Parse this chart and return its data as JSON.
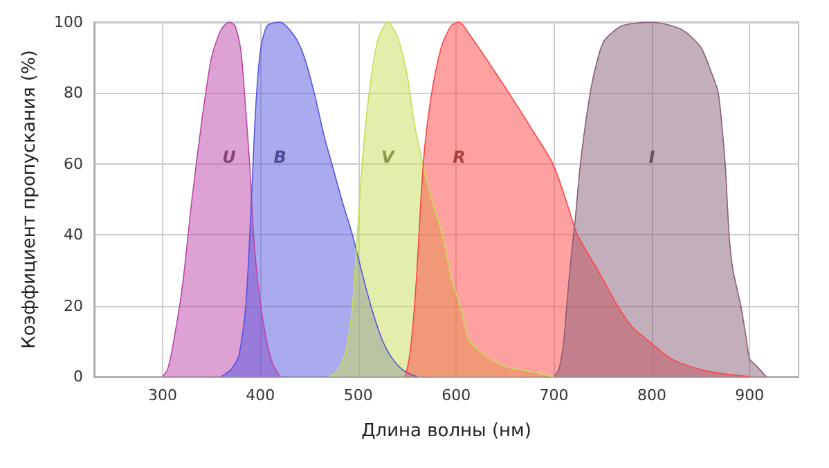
{
  "chart_data": {
    "type": "area",
    "xlabel": "Длина волны (нм)",
    "ylabel": "Коэффициент пропускания (%)",
    "xlim": [
      230,
      950
    ],
    "xticks": [
      300,
      400,
      500,
      600,
      700,
      800,
      900
    ],
    "ylim": [
      0,
      100
    ],
    "yticks": [
      0,
      20,
      40,
      60,
      80,
      100
    ],
    "grid": true,
    "series": [
      {
        "name": "U",
        "color": "#bb44aa",
        "x": [
          300,
          305,
          310,
          320,
          330,
          340,
          350,
          360,
          368,
          374,
          380,
          385,
          389,
          393,
          398,
          405,
          412,
          420
        ],
        "values": [
          0,
          2,
          8,
          25,
          50,
          72,
          90,
          98,
          100,
          99,
          92,
          75,
          60,
          40,
          25,
          12,
          4,
          0
        ]
      },
      {
        "name": "B",
        "color": "#5555dd",
        "x": [
          360,
          370,
          378,
          385,
          390,
          395,
          400,
          407,
          420,
          435,
          445,
          455,
          465,
          473,
          483,
          494,
          505,
          515,
          525,
          535,
          545,
          555,
          560
        ],
        "values": [
          0,
          2,
          6,
          20,
          45,
          75,
          92,
          99,
          100,
          96,
          90,
          80,
          68,
          60,
          50,
          40,
          28,
          18,
          10,
          5,
          2,
          0.5,
          0
        ]
      },
      {
        "name": "V",
        "color": "#c5dd55",
        "x": [
          470,
          480,
          488,
          494,
          499,
          504,
          511,
          520,
          530,
          540,
          550,
          557,
          566,
          575,
          586,
          595,
          604,
          614,
          630,
          649,
          684,
          700
        ],
        "values": [
          0,
          2,
          8,
          20,
          40,
          60,
          80,
          95,
          100,
          96,
          85,
          72,
          60,
          50,
          40,
          28,
          20,
          10,
          6,
          3,
          1,
          0
        ]
      },
      {
        "name": "R",
        "color": "#ff4444",
        "x": [
          548,
          552,
          556,
          560,
          564,
          568,
          575,
          585,
          595,
          603,
          615,
          630,
          654,
          677,
          699,
          712,
          724,
          745,
          765,
          780,
          797,
          820,
          850,
          875,
          900
        ],
        "values": [
          0,
          5,
          15,
          30,
          50,
          65,
          80,
          93,
          99,
          100,
          96,
          90,
          80,
          70,
          60,
          50,
          40,
          30,
          20,
          14,
          10,
          5,
          2,
          0.7,
          0
        ]
      },
      {
        "name": "I",
        "color": "#885f77",
        "x": [
          700,
          705,
          710,
          713,
          718,
          722,
          727,
          737,
          745,
          752,
          770,
          800,
          830,
          850,
          862,
          868,
          875,
          879,
          883,
          891,
          897,
          900,
          907,
          917
        ],
        "values": [
          0,
          2,
          10,
          20,
          35,
          45,
          60,
          80,
          90,
          95,
          99,
          100,
          98,
          93,
          85,
          80,
          60,
          40,
          30,
          20,
          10,
          5,
          3,
          0
        ]
      }
    ]
  }
}
